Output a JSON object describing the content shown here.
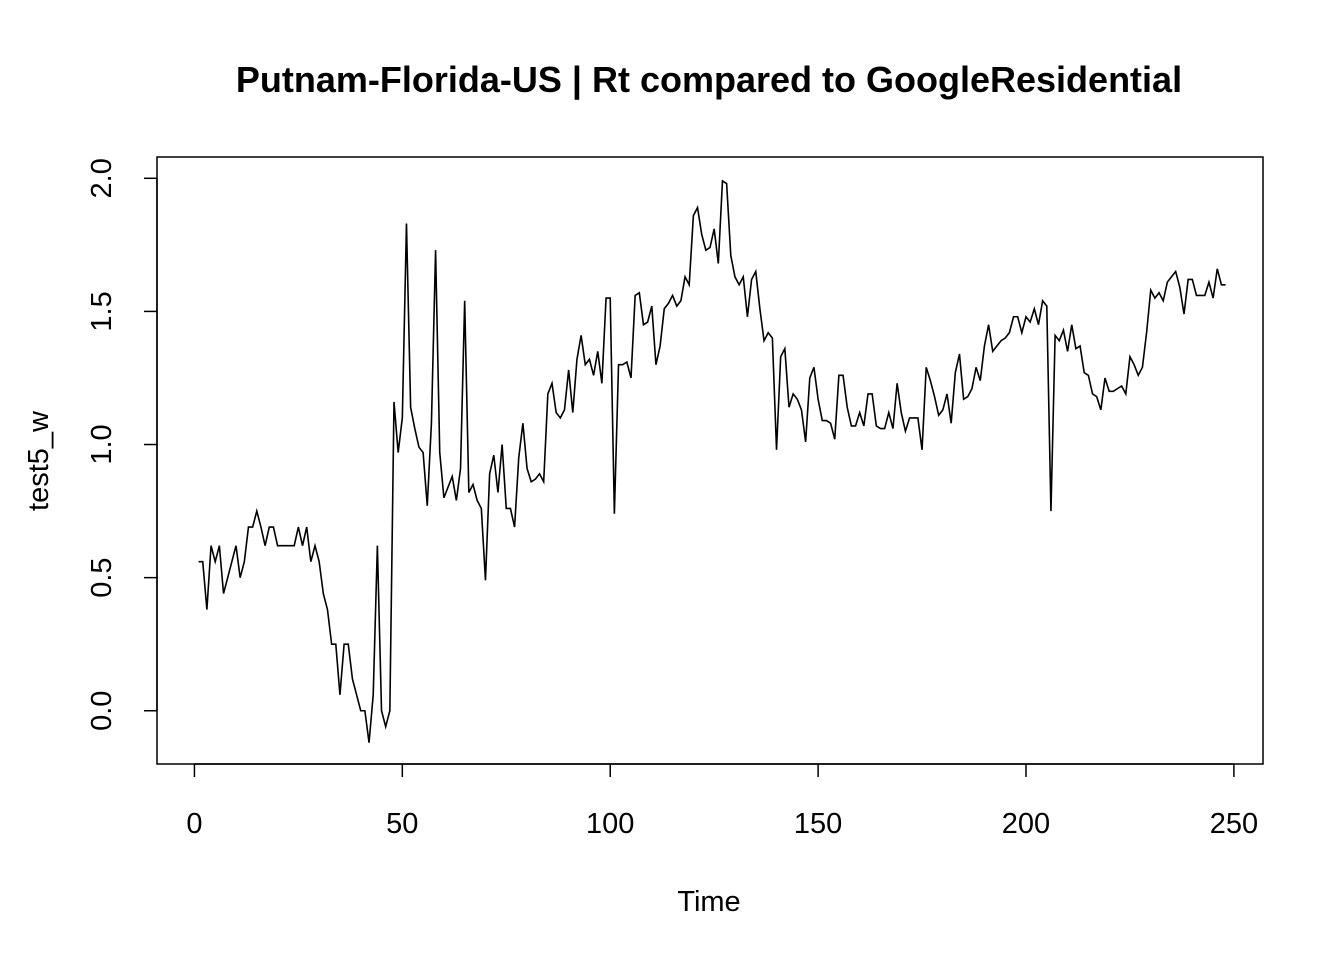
{
  "chart_data": {
    "type": "line",
    "title": "Putnam-Florida-US | Rt compared to GoogleResidential",
    "xlabel": "Time",
    "ylabel": "test5_w",
    "xlim": [
      -9,
      257
    ],
    "ylim": [
      -0.2,
      2.08
    ],
    "xticks": [
      0,
      50,
      100,
      150,
      200,
      250
    ],
    "yticks": [
      0.0,
      0.5,
      1.0,
      1.5,
      2.0
    ],
    "xtick_labels": [
      "0",
      "50",
      "100",
      "150",
      "200",
      "250"
    ],
    "ytick_labels": [
      "0.0",
      "0.5",
      "1.0",
      "1.5",
      "2.0"
    ],
    "grid": false,
    "line_color": "#000000",
    "series": [
      {
        "x": [
          1,
          2,
          3,
          4,
          5,
          6,
          7,
          8,
          9,
          10,
          11,
          12,
          13,
          14,
          15,
          16,
          17,
          18,
          19,
          20,
          21,
          22,
          23,
          24,
          25,
          26,
          27,
          28,
          29,
          30,
          31,
          32,
          33,
          34,
          35,
          36,
          37,
          38,
          39,
          40,
          41,
          42,
          43,
          44,
          45,
          46,
          47,
          48,
          49,
          50,
          51,
          52,
          53,
          54,
          55,
          56,
          57,
          58,
          59,
          60,
          61,
          62,
          63,
          64,
          65,
          66,
          67,
          68,
          69,
          70,
          71,
          72,
          73,
          74,
          75,
          76,
          77,
          78,
          79,
          80,
          81,
          82,
          83,
          84,
          85,
          86,
          87,
          88,
          89,
          90,
          91,
          92,
          93,
          94,
          95,
          96,
          97,
          98,
          99,
          100,
          101,
          102,
          103,
          104,
          105,
          106,
          107,
          108,
          109,
          110,
          111,
          112,
          113,
          114,
          115,
          116,
          117,
          118,
          119,
          120,
          121,
          122,
          123,
          124,
          125,
          126,
          127,
          128,
          129,
          130,
          131,
          132,
          133,
          134,
          135,
          136,
          137,
          138,
          139,
          140,
          141,
          142,
          143,
          144,
          145,
          146,
          147,
          148,
          149,
          150,
          151,
          152,
          153,
          154,
          155,
          156,
          157,
          158,
          159,
          160,
          161,
          162,
          163,
          164,
          165,
          166,
          167,
          168,
          169,
          170,
          171,
          172,
          173,
          174,
          175,
          176,
          177,
          178,
          179,
          180,
          181,
          182,
          183,
          184,
          185,
          186,
          187,
          188,
          189,
          190,
          191,
          192,
          193,
          194,
          195,
          196,
          197,
          198,
          199,
          200,
          201,
          202,
          203,
          204,
          205,
          206,
          207,
          208,
          209,
          210,
          211,
          212,
          213,
          214,
          215,
          216,
          217,
          218,
          219,
          220,
          221,
          222,
          223,
          224,
          225,
          226,
          227,
          228,
          229,
          230,
          231,
          232,
          233,
          234,
          235,
          236,
          237,
          238,
          239,
          240,
          241,
          242,
          243,
          244,
          245,
          246,
          247,
          248
        ],
        "values": [
          0.56,
          0.56,
          0.38,
          0.62,
          0.56,
          0.62,
          0.44,
          0.5,
          0.56,
          0.62,
          0.5,
          0.56,
          0.69,
          0.69,
          0.75,
          0.69,
          0.62,
          0.69,
          0.69,
          0.62,
          0.62,
          0.62,
          0.62,
          0.62,
          0.69,
          0.62,
          0.69,
          0.56,
          0.62,
          0.56,
          0.44,
          0.38,
          0.25,
          0.25,
          0.06,
          0.25,
          0.25,
          0.12,
          0.06,
          0.0,
          0.0,
          -0.12,
          0.06,
          0.62,
          0.0,
          -0.06,
          0.0,
          1.16,
          0.97,
          1.1,
          1.83,
          1.14,
          1.06,
          0.99,
          0.97,
          0.77,
          1.08,
          1.73,
          0.97,
          0.8,
          0.84,
          0.88,
          0.79,
          0.91,
          1.54,
          0.82,
          0.85,
          0.79,
          0.76,
          0.49,
          0.89,
          0.96,
          0.82,
          1.0,
          0.76,
          0.76,
          0.69,
          0.95,
          1.08,
          0.91,
          0.86,
          0.87,
          0.89,
          0.86,
          1.19,
          1.23,
          1.12,
          1.1,
          1.13,
          1.28,
          1.12,
          1.32,
          1.41,
          1.3,
          1.32,
          1.26,
          1.35,
          1.23,
          1.55,
          1.55,
          0.74,
          1.3,
          1.3,
          1.31,
          1.25,
          1.56,
          1.57,
          1.45,
          1.46,
          1.52,
          1.3,
          1.37,
          1.51,
          1.53,
          1.56,
          1.52,
          1.54,
          1.63,
          1.6,
          1.86,
          1.89,
          1.79,
          1.73,
          1.74,
          1.81,
          1.68,
          1.99,
          1.98,
          1.71,
          1.63,
          1.6,
          1.63,
          1.48,
          1.62,
          1.65,
          1.51,
          1.39,
          1.42,
          1.4,
          0.98,
          1.33,
          1.36,
          1.14,
          1.19,
          1.17,
          1.13,
          1.01,
          1.25,
          1.29,
          1.17,
          1.09,
          1.09,
          1.08,
          1.02,
          1.26,
          1.26,
          1.14,
          1.07,
          1.07,
          1.12,
          1.07,
          1.19,
          1.19,
          1.07,
          1.06,
          1.06,
          1.12,
          1.06,
          1.23,
          1.12,
          1.05,
          1.1,
          1.1,
          1.1,
          0.98,
          1.29,
          1.24,
          1.18,
          1.11,
          1.13,
          1.19,
          1.08,
          1.27,
          1.34,
          1.17,
          1.18,
          1.21,
          1.29,
          1.24,
          1.37,
          1.45,
          1.35,
          1.37,
          1.39,
          1.4,
          1.42,
          1.48,
          1.48,
          1.42,
          1.48,
          1.46,
          1.51,
          1.45,
          1.54,
          1.52,
          0.75,
          1.41,
          1.39,
          1.43,
          1.35,
          1.45,
          1.36,
          1.37,
          1.27,
          1.26,
          1.19,
          1.18,
          1.13,
          1.25,
          1.2,
          1.2,
          1.21,
          1.22,
          1.19,
          1.33,
          1.3,
          1.26,
          1.29,
          1.42,
          1.58,
          1.55,
          1.57,
          1.54,
          1.61,
          1.63,
          1.65,
          1.59,
          1.49,
          1.62,
          1.62,
          1.56,
          1.56,
          1.56,
          1.61,
          1.55,
          1.66,
          1.6,
          1.6
        ]
      }
    ]
  }
}
